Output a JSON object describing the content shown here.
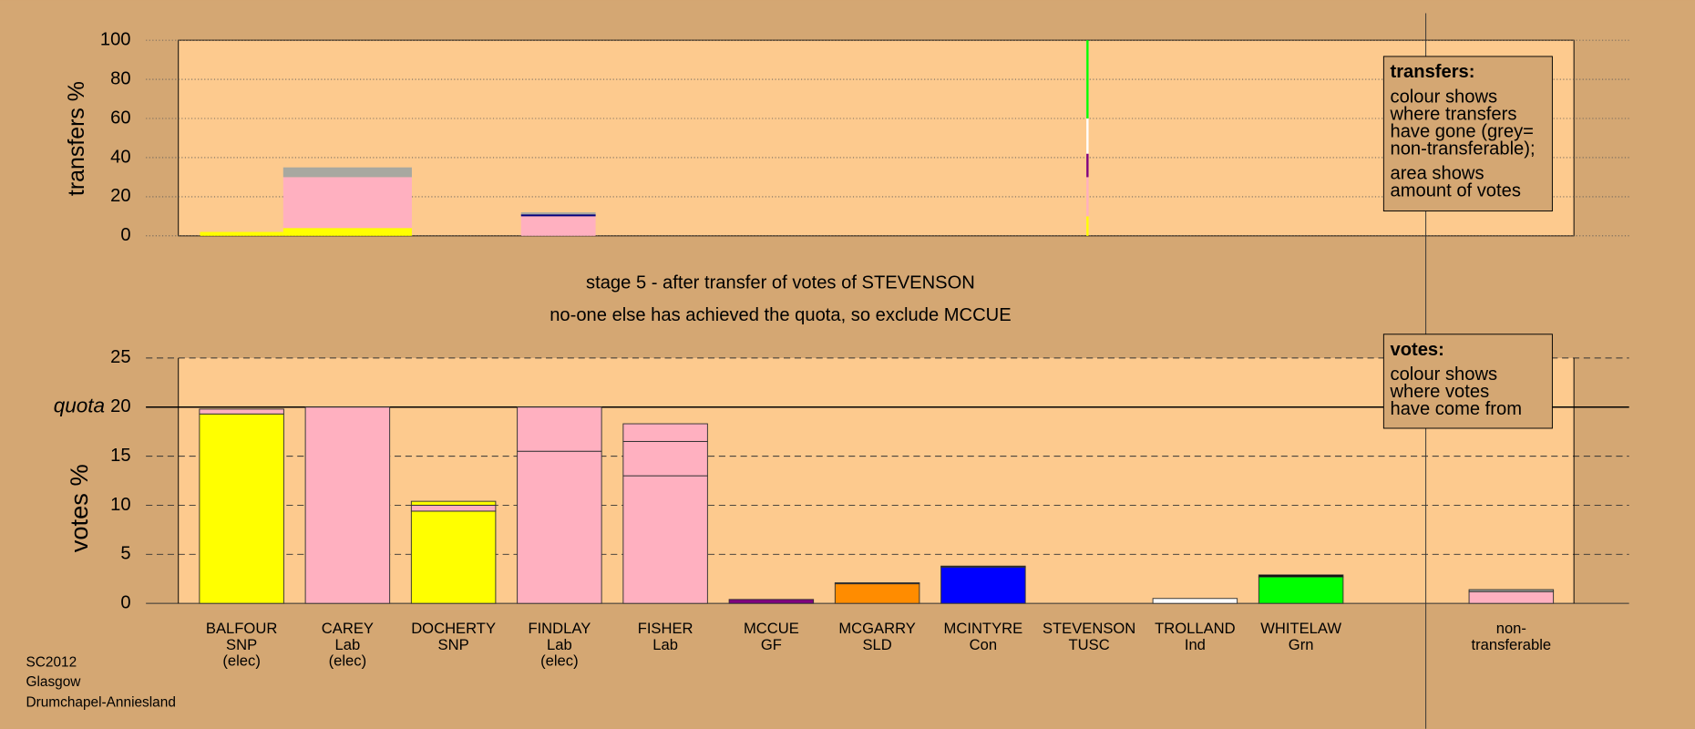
{
  "chart_data": [
    {
      "type": "transfers",
      "y_label": "transfers %",
      "ylim": [
        0,
        100
      ],
      "yticks": [
        0,
        20,
        40,
        60,
        80,
        100
      ],
      "grid": true,
      "bars": [
        {
          "segments": [
            {
              "color": "#ffff00",
              "value": 2
            }
          ]
        },
        {
          "segments": [
            {
              "color": "#ffff00",
              "value": 4
            },
            {
              "color": "#ffb0c0",
              "value": 26
            },
            {
              "color": "#a8a8a0",
              "value": 5
            }
          ]
        },
        {
          "segments": [
            {
              "color": "#ffb0c0",
              "value": 10
            },
            {
              "color": "#000080",
              "value": 1
            },
            {
              "color": "#a8a8a0",
              "value": 1
            }
          ]
        },
        {
          "segments": [
            {
              "color": "#ffff00",
              "value": 10
            },
            {
              "color": "#ffb0c0",
              "value": 20
            },
            {
              "color": "#800080",
              "value": 12
            },
            {
              "color": "#ffffff",
              "value": 18
            },
            {
              "color": "#00ff00",
              "value": 40
            }
          ]
        }
      ],
      "legend": {
        "title": "transfers:",
        "lines": [
          "colour shows",
          "where transfers",
          "have gone (grey=",
          "non-transferable);",
          "area shows",
          "amount of votes"
        ]
      }
    },
    {
      "type": "stacked-bar",
      "annotations": [
        "stage 5 - after transfer of votes of STEVENSON",
        "no-one else has achieved the quota, so exclude MCCUE"
      ],
      "y_label": "votes %",
      "ylim": [
        0,
        25
      ],
      "yticks": [
        0,
        5,
        10,
        15,
        20,
        25
      ],
      "grid": true,
      "quota": {
        "value": 20,
        "label": "quota"
      },
      "categories": [
        [
          "BALFOUR",
          "SNP",
          "(elec)"
        ],
        [
          "CAREY",
          "Lab",
          "(elec)"
        ],
        [
          "DOCHERTY",
          "SNP"
        ],
        [
          "FINDLAY",
          "Lab",
          "(elec)"
        ],
        [
          "FISHER",
          "Lab"
        ],
        [
          "MCCUE",
          "GF"
        ],
        [
          "MCGARRY",
          "SLD"
        ],
        [
          "MCINTYRE",
          "Con"
        ],
        [
          "STEVENSON",
          "TUSC"
        ],
        [
          "TROLLAND",
          "Ind"
        ],
        [
          "WHITELAW",
          "Grn"
        ],
        [
          "non-",
          "transferable"
        ]
      ],
      "bars": [
        {
          "segments": [
            {
              "color": "#ffff00",
              "value": 19.3
            },
            {
              "color": "#ffb0c0",
              "value": 0.5
            }
          ]
        },
        {
          "segments": [
            {
              "color": "#ffb0c0",
              "value": 20
            }
          ]
        },
        {
          "segments": [
            {
              "color": "#ffff00",
              "value": 9.4
            },
            {
              "color": "#ffb0c0",
              "value": 0.6
            },
            {
              "color": "#ffff00",
              "value": 0.4
            }
          ]
        },
        {
          "segments": [
            {
              "color": "#ffb0c0",
              "value": 15.5
            },
            {
              "color": "#ffb0c0",
              "value": 4.5
            }
          ]
        },
        {
          "segments": [
            {
              "color": "#ffb0c0",
              "value": 13
            },
            {
              "color": "#ffb0c0",
              "value": 3.5
            },
            {
              "color": "#ffb0c0",
              "value": 1.8
            }
          ]
        },
        {
          "segments": [
            {
              "color": "#800080",
              "value": 0.4
            }
          ]
        },
        {
          "segments": [
            {
              "color": "#ff8c00",
              "value": 2
            },
            {
              "color": "#000000",
              "value": 0.1
            }
          ]
        },
        {
          "segments": [
            {
              "color": "#0000ff",
              "value": 3.7
            },
            {
              "color": "#000000",
              "value": 0.1
            }
          ]
        },
        {
          "segments": [
            {
              "color": "#ffffff",
              "value": 0
            }
          ]
        },
        {
          "segments": [
            {
              "color": "#ffffff",
              "value": 0.5
            }
          ]
        },
        {
          "segments": [
            {
              "color": "#00ff00",
              "value": 2.7
            },
            {
              "color": "#000000",
              "value": 0.2
            }
          ]
        },
        {
          "segments": [
            {
              "color": "#ffb0c0",
              "value": 1.2
            },
            {
              "color": "#a8a8a0",
              "value": 0.2
            }
          ]
        }
      ],
      "legend": {
        "title": "votes:",
        "lines": [
          "colour shows",
          "where votes",
          "have come from"
        ]
      }
    }
  ],
  "footer": [
    "SC2012",
    "Glasgow",
    "Drumchapel-Anniesland"
  ]
}
